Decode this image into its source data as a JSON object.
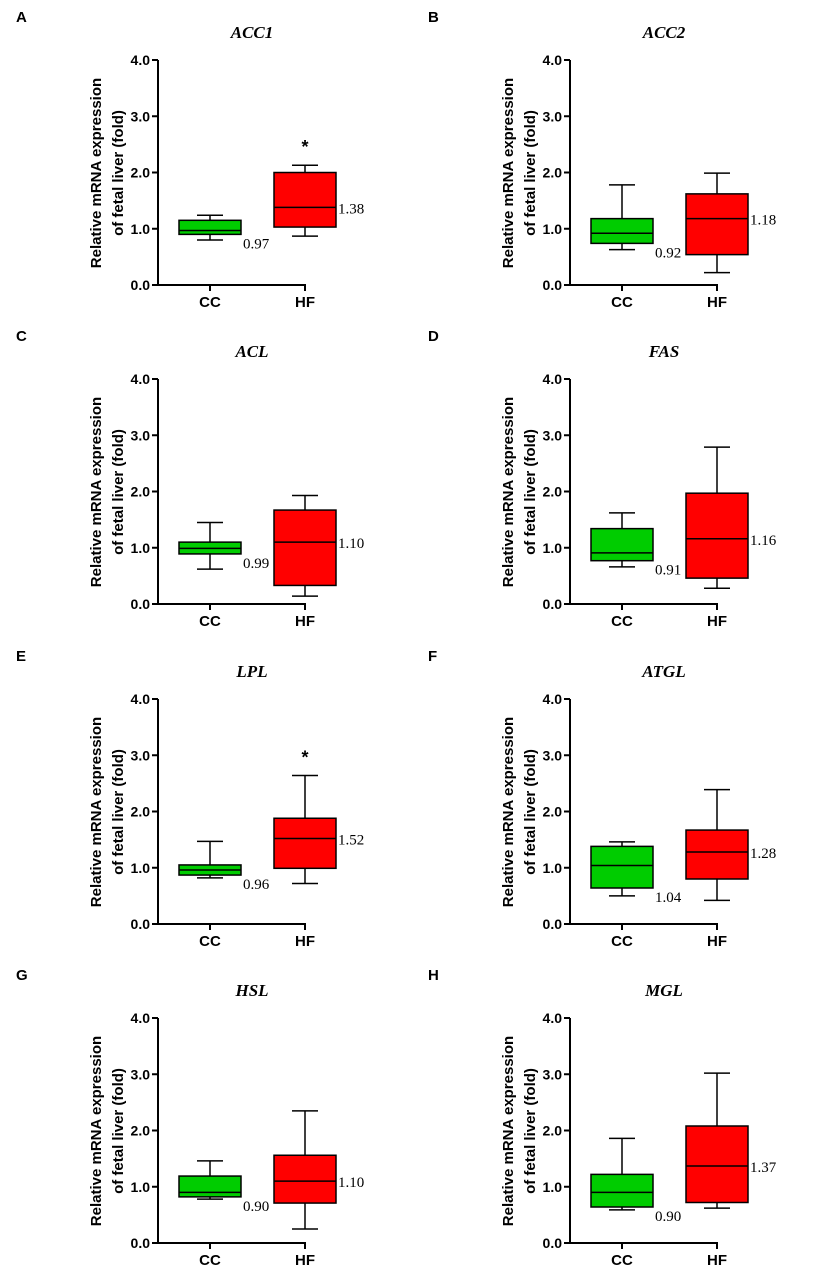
{
  "figure": {
    "ylabel_line1": "Relative mRNA expression",
    "ylabel_line2": "of fetal liver (fold)",
    "yticks": [
      "0.0",
      "1.0",
      "2.0",
      "3.0",
      "4.0"
    ],
    "categories": [
      "CC",
      "HF"
    ],
    "colors": {
      "CC": "#00cc00",
      "HF": "#ff0000"
    }
  },
  "chart_data": [
    {
      "type": "box",
      "panel": "A",
      "title": "ACC1",
      "ylim": [
        0,
        4
      ],
      "xlabel": "",
      "ylabel": "Relative mRNA expression of fetal liver (fold)",
      "categories": [
        "CC",
        "HF"
      ],
      "series": [
        {
          "name": "CC",
          "min": 0.8,
          "q1": 0.9,
          "median": 0.97,
          "q3": 1.15,
          "max": 1.24,
          "median_label": "0.97"
        },
        {
          "name": "HF",
          "min": 0.87,
          "q1": 1.03,
          "median": 1.38,
          "q3": 2.0,
          "max": 2.13,
          "median_label": "1.38",
          "significance": "*"
        }
      ]
    },
    {
      "type": "box",
      "panel": "B",
      "title": "ACC2",
      "ylim": [
        0,
        4
      ],
      "xlabel": "",
      "ylabel": "Relative mRNA expression of fetal liver (fold)",
      "categories": [
        "CC",
        "HF"
      ],
      "series": [
        {
          "name": "CC",
          "min": 0.63,
          "q1": 0.74,
          "median": 0.92,
          "q3": 1.18,
          "max": 1.78,
          "median_label": "0.92"
        },
        {
          "name": "HF",
          "min": 0.22,
          "q1": 0.54,
          "median": 1.18,
          "q3": 1.62,
          "max": 1.99,
          "median_label": "1.18"
        }
      ]
    },
    {
      "type": "box",
      "panel": "C",
      "title": "ACL",
      "ylim": [
        0,
        4
      ],
      "xlabel": "",
      "ylabel": "Relative mRNA expression of fetal liver (fold)",
      "categories": [
        "CC",
        "HF"
      ],
      "series": [
        {
          "name": "CC",
          "min": 0.62,
          "q1": 0.89,
          "median": 0.99,
          "q3": 1.1,
          "max": 1.45,
          "median_label": "0.99"
        },
        {
          "name": "HF",
          "min": 0.14,
          "q1": 0.33,
          "median": 1.1,
          "q3": 1.67,
          "max": 1.93,
          "median_label": "1.10"
        }
      ]
    },
    {
      "type": "box",
      "panel": "D",
      "title": "FAS",
      "ylim": [
        0,
        4
      ],
      "xlabel": "",
      "ylabel": "Relative mRNA expression of fetal liver (fold)",
      "categories": [
        "CC",
        "HF"
      ],
      "series": [
        {
          "name": "CC",
          "min": 0.66,
          "q1": 0.77,
          "median": 0.91,
          "q3": 1.34,
          "max": 1.62,
          "median_label": "0.91"
        },
        {
          "name": "HF",
          "min": 0.28,
          "q1": 0.46,
          "median": 1.16,
          "q3": 1.97,
          "max": 2.79,
          "median_label": "1.16"
        }
      ]
    },
    {
      "type": "box",
      "panel": "E",
      "title": "LPL",
      "ylim": [
        0,
        4
      ],
      "xlabel": "",
      "ylabel": "Relative mRNA expression of fetal liver (fold)",
      "categories": [
        "CC",
        "HF"
      ],
      "series": [
        {
          "name": "CC",
          "min": 0.82,
          "q1": 0.87,
          "median": 0.96,
          "q3": 1.05,
          "max": 1.47,
          "median_label": "0.96"
        },
        {
          "name": "HF",
          "min": 0.72,
          "q1": 0.99,
          "median": 1.52,
          "q3": 1.88,
          "max": 2.64,
          "median_label": "1.52",
          "significance": "*"
        }
      ]
    },
    {
      "type": "box",
      "panel": "F",
      "title": "ATGL",
      "ylim": [
        0,
        4
      ],
      "xlabel": "",
      "ylabel": "Relative mRNA expression of fetal liver (fold)",
      "categories": [
        "CC",
        "HF"
      ],
      "series": [
        {
          "name": "CC",
          "min": 0.5,
          "q1": 0.64,
          "median": 1.04,
          "q3": 1.38,
          "max": 1.46,
          "median_label": "1.04"
        },
        {
          "name": "HF",
          "min": 0.42,
          "q1": 0.8,
          "median": 1.28,
          "q3": 1.67,
          "max": 2.39,
          "median_label": "1.28"
        }
      ]
    },
    {
      "type": "box",
      "panel": "G",
      "title": "HSL",
      "ylim": [
        0,
        4
      ],
      "xlabel": "",
      "ylabel": "Relative mRNA expression of fetal liver (fold)",
      "categories": [
        "CC",
        "HF"
      ],
      "series": [
        {
          "name": "CC",
          "min": 0.78,
          "q1": 0.82,
          "median": 0.9,
          "q3": 1.19,
          "max": 1.46,
          "median_label": "0.90"
        },
        {
          "name": "HF",
          "min": 0.25,
          "q1": 0.71,
          "median": 1.1,
          "q3": 1.56,
          "max": 2.35,
          "median_label": "1.10"
        }
      ]
    },
    {
      "type": "box",
      "panel": "H",
      "title": "MGL",
      "ylim": [
        0,
        4
      ],
      "xlabel": "",
      "ylabel": "Relative mRNA expression of fetal liver (fold)",
      "categories": [
        "CC",
        "HF"
      ],
      "series": [
        {
          "name": "CC",
          "min": 0.59,
          "q1": 0.64,
          "median": 0.9,
          "q3": 1.22,
          "max": 1.86,
          "median_label": "0.90"
        },
        {
          "name": "HF",
          "min": 0.62,
          "q1": 0.72,
          "median": 1.37,
          "q3": 2.08,
          "max": 3.02,
          "median_label": "1.37"
        }
      ]
    }
  ]
}
